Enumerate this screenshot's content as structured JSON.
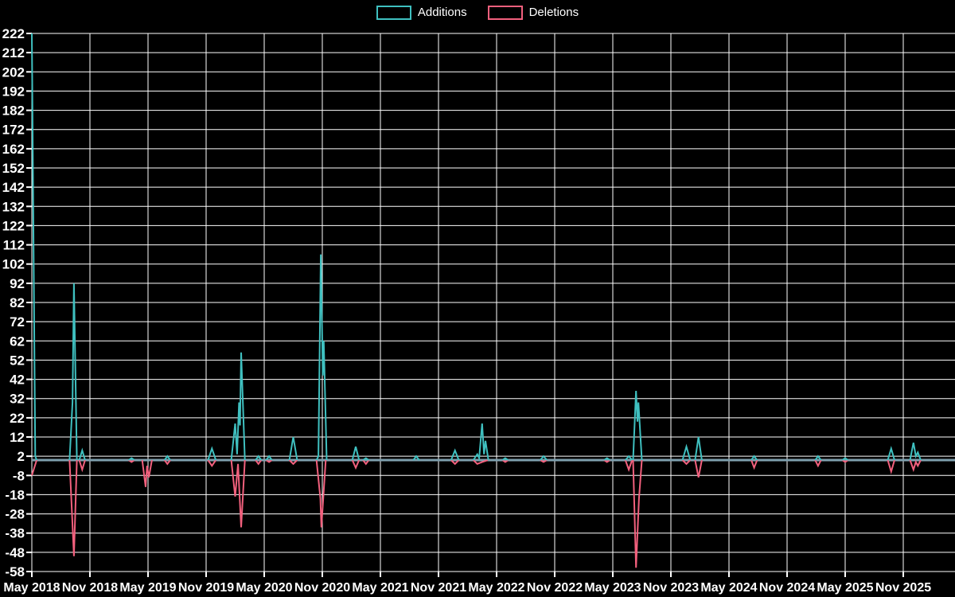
{
  "chart_data": {
    "type": "line",
    "title": "",
    "legend": [
      "Additions",
      "Deletions"
    ],
    "legend_position": "top-center",
    "grid": true,
    "background": "#000000",
    "colors": {
      "grid": "#ffffff",
      "axis_text": "#ffffff",
      "zero_line": "#7e9fae",
      "additions": "#3fc0c0",
      "deletions": "#f2607d"
    },
    "y_axis": {
      "range": [
        -58,
        222
      ],
      "step": 10,
      "ticks": [
        222,
        212,
        202,
        192,
        182,
        172,
        162,
        152,
        142,
        132,
        122,
        112,
        102,
        92,
        82,
        72,
        62,
        52,
        42,
        32,
        22,
        12,
        2,
        -8,
        -18,
        -28,
        -38,
        -48,
        -58
      ]
    },
    "x_axis": {
      "unit": "months since May 2018 (one tick every 6 months)",
      "ticks": [
        "May 2018",
        "Nov 2018",
        "May 2019",
        "Nov 2019",
        "May 2020",
        "Nov 2020",
        "May 2021",
        "Nov 2021",
        "May 2022",
        "Nov 2022",
        "May 2023",
        "Nov 2023",
        "May 2024",
        "Nov 2024",
        "May 2025",
        "Nov 2025"
      ]
    },
    "series": [
      {
        "name": "Additions",
        "color": "#3fc0c0",
        "baseline": 0,
        "segments": [
          [
            [
              0,
              222
            ],
            [
              0.35,
              2
            ],
            [
              0.5,
              0
            ]
          ],
          [
            [
              3.9,
              0
            ],
            [
              4.2,
              30
            ],
            [
              4.35,
              92
            ],
            [
              4.65,
              0
            ]
          ],
          [
            [
              4.9,
              0
            ],
            [
              5.2,
              5
            ],
            [
              5.5,
              0
            ]
          ],
          [
            [
              10.0,
              0
            ],
            [
              10.3,
              1
            ],
            [
              10.6,
              0
            ]
          ],
          [
            [
              13.7,
              0
            ],
            [
              14.0,
              2
            ],
            [
              14.3,
              0
            ]
          ],
          [
            [
              18.2,
              0
            ],
            [
              18.6,
              6
            ],
            [
              19.0,
              0
            ]
          ],
          [
            [
              20.6,
              0
            ],
            [
              21.0,
              19
            ],
            [
              21.2,
              3
            ],
            [
              21.4,
              30
            ],
            [
              21.5,
              18
            ],
            [
              21.62,
              56
            ],
            [
              22.0,
              0
            ]
          ],
          [
            [
              23.1,
              0
            ],
            [
              23.4,
              2
            ],
            [
              23.7,
              0
            ]
          ],
          [
            [
              24.2,
              0
            ],
            [
              24.5,
              2
            ],
            [
              24.8,
              0
            ]
          ],
          [
            [
              26.6,
              0
            ],
            [
              27.0,
              12
            ],
            [
              27.4,
              0
            ]
          ],
          [
            [
              29.4,
              0
            ],
            [
              29.6,
              2
            ],
            [
              29.84,
              107
            ],
            [
              30.05,
              44
            ],
            [
              30.15,
              62
            ],
            [
              30.45,
              0
            ]
          ],
          [
            [
              33.1,
              0
            ],
            [
              33.45,
              7
            ],
            [
              33.8,
              0
            ]
          ],
          [
            [
              34.2,
              0
            ],
            [
              34.5,
              1
            ],
            [
              34.8,
              0
            ]
          ],
          [
            [
              39.4,
              0
            ],
            [
              39.7,
              2
            ],
            [
              40.0,
              0
            ]
          ],
          [
            [
              43.3,
              0
            ],
            [
              43.7,
              5
            ],
            [
              44.1,
              0
            ]
          ],
          [
            [
              45.6,
              0
            ],
            [
              46.0,
              3
            ],
            [
              46.2,
              1
            ],
            [
              46.5,
              19
            ],
            [
              46.7,
              3
            ],
            [
              46.85,
              10
            ],
            [
              47.15,
              0
            ]
          ],
          [
            [
              48.6,
              0
            ],
            [
              48.9,
              1
            ],
            [
              49.2,
              0
            ]
          ],
          [
            [
              52.5,
              0
            ],
            [
              52.85,
              2
            ],
            [
              53.2,
              0
            ]
          ],
          [
            [
              59.1,
              0
            ],
            [
              59.4,
              1
            ],
            [
              59.7,
              0
            ]
          ],
          [
            [
              61.3,
              0
            ],
            [
              61.65,
              2
            ],
            [
              62.0,
              0
            ]
          ],
          [
            [
              62.1,
              0
            ],
            [
              62.4,
              36
            ],
            [
              62.55,
              20
            ],
            [
              62.65,
              30
            ],
            [
              63.0,
              0
            ]
          ],
          [
            [
              67.2,
              0
            ],
            [
              67.6,
              7
            ],
            [
              68.0,
              0
            ]
          ],
          [
            [
              68.5,
              0
            ],
            [
              68.85,
              12
            ],
            [
              69.2,
              0
            ]
          ],
          [
            [
              74.3,
              0
            ],
            [
              74.6,
              2
            ],
            [
              74.9,
              0
            ]
          ],
          [
            [
              80.9,
              0
            ],
            [
              81.2,
              2
            ],
            [
              81.5,
              0
            ]
          ],
          [
            [
              83.7,
              0
            ],
            [
              84.0,
              1
            ],
            [
              84.3,
              0
            ]
          ],
          [
            [
              88.4,
              0
            ],
            [
              88.75,
              6
            ],
            [
              89.1,
              0
            ]
          ],
          [
            [
              90.7,
              0
            ],
            [
              91.05,
              9
            ],
            [
              91.3,
              2
            ],
            [
              91.5,
              4
            ],
            [
              91.8,
              0
            ]
          ]
        ]
      },
      {
        "name": "Deletions",
        "color": "#f2607d",
        "baseline": 0,
        "segments": [
          [
            [
              0,
              -8
            ],
            [
              0.5,
              0
            ]
          ],
          [
            [
              3.9,
              0
            ],
            [
              4.35,
              -50
            ],
            [
              4.65,
              0
            ]
          ],
          [
            [
              4.9,
              0
            ],
            [
              5.2,
              -5
            ],
            [
              5.5,
              0
            ]
          ],
          [
            [
              10.0,
              0
            ],
            [
              10.3,
              -1
            ],
            [
              10.6,
              0
            ]
          ],
          [
            [
              11.4,
              0
            ],
            [
              11.75,
              -14
            ],
            [
              11.9,
              -3
            ],
            [
              12.08,
              -9
            ],
            [
              12.4,
              0
            ]
          ],
          [
            [
              13.7,
              0
            ],
            [
              14.0,
              -2
            ],
            [
              14.3,
              0
            ]
          ],
          [
            [
              18.2,
              0
            ],
            [
              18.6,
              -3
            ],
            [
              19.0,
              0
            ]
          ],
          [
            [
              20.6,
              0
            ],
            [
              21.0,
              -19
            ],
            [
              21.3,
              -2
            ],
            [
              21.62,
              -35
            ],
            [
              22.0,
              0
            ]
          ],
          [
            [
              23.1,
              0
            ],
            [
              23.4,
              -2
            ],
            [
              23.7,
              0
            ]
          ],
          [
            [
              24.2,
              0
            ],
            [
              24.5,
              -1
            ],
            [
              24.8,
              0
            ]
          ],
          [
            [
              26.6,
              0
            ],
            [
              27.0,
              -2
            ],
            [
              27.4,
              0
            ]
          ],
          [
            [
              29.4,
              0
            ],
            [
              29.8,
              -20
            ],
            [
              29.9,
              -35
            ],
            [
              30.35,
              0
            ]
          ],
          [
            [
              33.1,
              0
            ],
            [
              33.45,
              -4
            ],
            [
              33.8,
              0
            ]
          ],
          [
            [
              34.2,
              0
            ],
            [
              34.5,
              -2
            ],
            [
              34.8,
              0
            ]
          ],
          [
            [
              43.3,
              0
            ],
            [
              43.7,
              -2
            ],
            [
              44.1,
              0
            ]
          ],
          [
            [
              45.6,
              0
            ],
            [
              46.0,
              -2
            ],
            [
              46.5,
              -1
            ],
            [
              47.1,
              0
            ]
          ],
          [
            [
              48.6,
              0
            ],
            [
              48.9,
              -1
            ],
            [
              49.2,
              0
            ]
          ],
          [
            [
              52.5,
              0
            ],
            [
              52.85,
              -1
            ],
            [
              53.2,
              0
            ]
          ],
          [
            [
              59.1,
              0
            ],
            [
              59.4,
              -1
            ],
            [
              59.7,
              0
            ]
          ],
          [
            [
              61.3,
              0
            ],
            [
              61.65,
              -5
            ],
            [
              62.0,
              0
            ]
          ],
          [
            [
              62.1,
              0
            ],
            [
              62.4,
              -56
            ],
            [
              62.7,
              -20
            ],
            [
              63.0,
              0
            ]
          ],
          [
            [
              67.2,
              0
            ],
            [
              67.6,
              -2
            ],
            [
              68.0,
              0
            ]
          ],
          [
            [
              68.5,
              0
            ],
            [
              68.85,
              -9
            ],
            [
              69.2,
              0
            ]
          ],
          [
            [
              74.3,
              0
            ],
            [
              74.6,
              -4
            ],
            [
              74.9,
              0
            ]
          ],
          [
            [
              80.9,
              0
            ],
            [
              81.2,
              -3
            ],
            [
              81.5,
              0
            ]
          ],
          [
            [
              83.7,
              0
            ],
            [
              84.0,
              -1
            ],
            [
              84.3,
              0
            ]
          ],
          [
            [
              88.4,
              0
            ],
            [
              88.75,
              -6
            ],
            [
              89.1,
              0
            ]
          ],
          [
            [
              90.7,
              0
            ],
            [
              91.05,
              -5
            ],
            [
              91.3,
              -1
            ],
            [
              91.5,
              -3
            ],
            [
              91.8,
              0
            ]
          ]
        ]
      }
    ]
  }
}
